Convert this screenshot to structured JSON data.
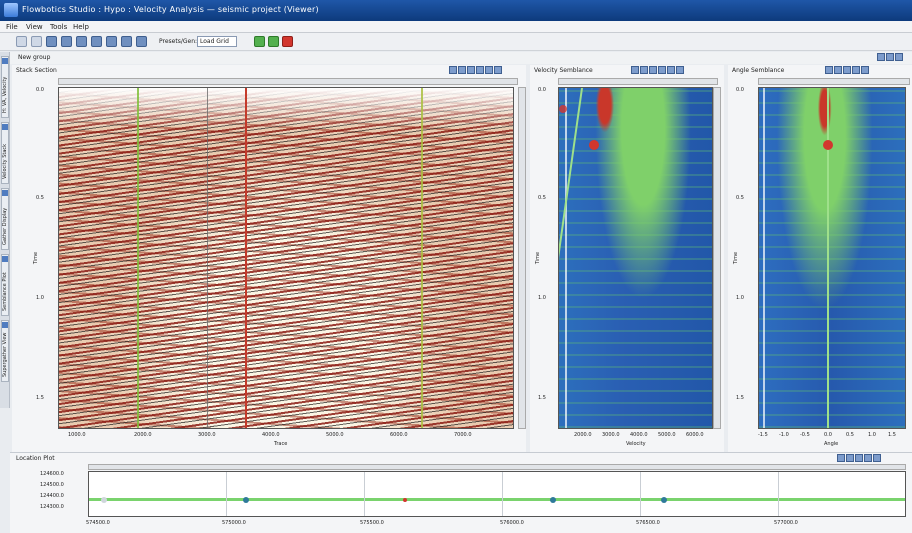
{
  "window": {
    "title": "Flowbotics Studio : Hypo : Velocity Analysis — seismic project (Viewer)"
  },
  "menu": [
    "File",
    "View",
    "Tools",
    "Help"
  ],
  "toolbar": {
    "preset_label": "Presets/Gen:",
    "template_value": "Load Grid"
  },
  "group": {
    "label": "New group"
  },
  "sidebar_tabs": [
    "H: VA, Velocity Panel",
    "Velocity Stack",
    "Gather Display",
    "Semblance Plot",
    "Supergather View"
  ],
  "panels": {
    "left": {
      "title": "Stack Section",
      "y_ticks": [
        "0.0",
        "0.5",
        "1.0",
        "1.5"
      ],
      "x_ticks": [
        "1000.0",
        "2000.0",
        "3000.0",
        "4000.0",
        "5000.0",
        "6000.0",
        "7000.0"
      ],
      "x_label": "Trace",
      "y_label": "Time"
    },
    "middle": {
      "title": "Velocity Semblance",
      "y_ticks": [
        "0.0",
        "0.5",
        "1.0",
        "1.5"
      ],
      "x_ticks": [
        "2000.0",
        "3000.0",
        "4000.0",
        "5000.0",
        "6000.0"
      ],
      "x_label": "Velocity",
      "y_label": "Time"
    },
    "right": {
      "title": "Angle Semblance",
      "y_ticks": [
        "0.0",
        "0.5",
        "1.0",
        "1.5"
      ],
      "x_ticks": [
        "-1.5",
        "-1.0",
        "-0.5",
        "0.0",
        "0.5",
        "1.0",
        "1.5"
      ],
      "x_label": "Angle",
      "y_label": "Time"
    },
    "bottom": {
      "title": "Location Plot",
      "y_ticks": [
        "124600.0",
        "124500.0",
        "124400.0",
        "124300.0"
      ],
      "x_ticks": [
        "574500.0",
        "575000.0",
        "575500.0",
        "576000.0",
        "576500.0",
        "577000.0"
      ]
    }
  },
  "colors": {
    "titlebar": "#1f57a8",
    "pick_marker": "#d2362e",
    "track_line": "#7ad36d"
  }
}
